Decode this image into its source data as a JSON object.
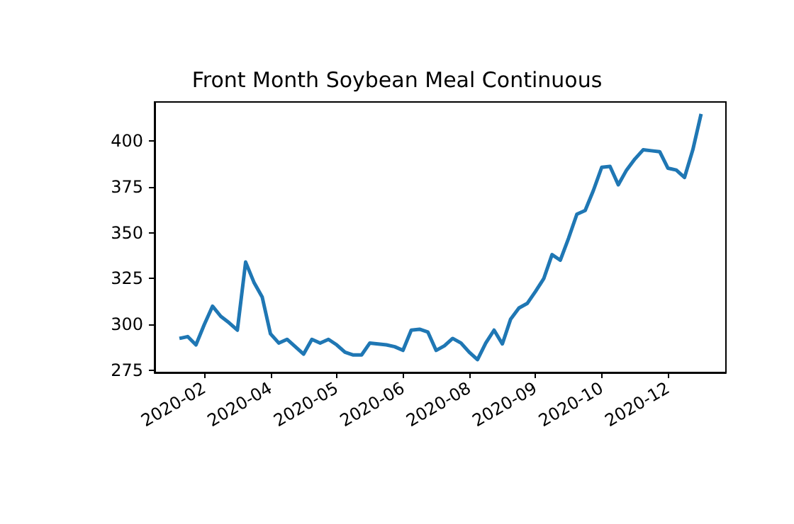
{
  "chart_data": {
    "type": "line",
    "title": "Front Month Soybean Meal Continuous",
    "categories": [
      null,
      null,
      null,
      null,
      null,
      null,
      "2020-02",
      null,
      null,
      null,
      null,
      null,
      null,
      null,
      "2020-04",
      null,
      null,
      null,
      null,
      null,
      null,
      null,
      "2020-05",
      null,
      null,
      null,
      null,
      null,
      null,
      null,
      "2020-06",
      null,
      null,
      null,
      null,
      null,
      null,
      null,
      "2020-08",
      null,
      null,
      null,
      null,
      null,
      null,
      null,
      "2020-09",
      null,
      null,
      null,
      null,
      null,
      null,
      null,
      "2020-10",
      null,
      null,
      null,
      null,
      null,
      null,
      null,
      "2020-12",
      null,
      null,
      null,
      null,
      null,
      null,
      null
    ],
    "series": [
      {
        "color": "#1f77b4",
        "values": [
          null,
          null,
          null,
          292.5,
          293.5,
          289,
          300,
          310,
          304.5,
          301,
          297,
          334,
          323,
          315,
          295,
          290,
          292,
          288,
          284,
          292,
          290,
          292,
          289,
          285,
          283.5,
          283.5,
          290,
          289.5,
          289,
          288,
          286,
          297,
          297.5,
          296,
          286,
          288.5,
          292.5,
          290,
          285,
          281,
          290,
          297,
          289.5,
          303,
          309,
          311.5,
          318,
          325,
          338,
          335,
          347,
          360,
          362,
          373,
          385.5,
          386,
          376,
          384,
          390,
          395,
          394.5,
          394,
          385,
          384,
          380,
          395,
          414.5,
          null,
          null,
          null
        ]
      }
    ],
    "ylim": [
      274,
      421
    ],
    "yticks": [
      275,
      300,
      325,
      350,
      375,
      400
    ],
    "line_style": "solid"
  }
}
